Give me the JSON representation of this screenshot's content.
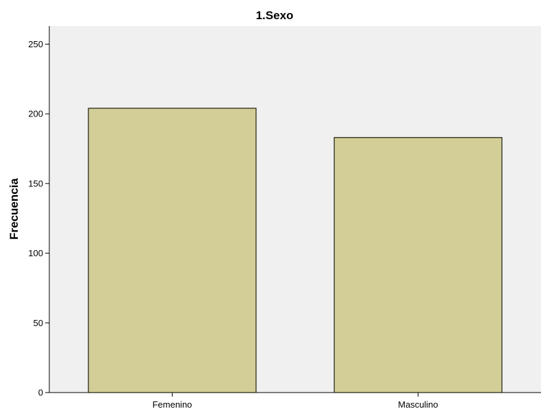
{
  "chart_data": {
    "type": "bar",
    "title": "1.Sexo",
    "xlabel": "",
    "ylabel": "Frecuencia",
    "categories": [
      "Femenino",
      "Masculino"
    ],
    "values": [
      204,
      183
    ],
    "ylim": [
      0,
      263
    ],
    "yticks": [
      0,
      50,
      100,
      150,
      200,
      250
    ],
    "grid": false,
    "legend": "none",
    "colors": {
      "bar_fill": "#D3CE97",
      "bar_stroke": "#2B2B1A",
      "plot_background": "#F0F0F0",
      "page_background": "#FFFFFF",
      "axis": "#000000"
    }
  }
}
